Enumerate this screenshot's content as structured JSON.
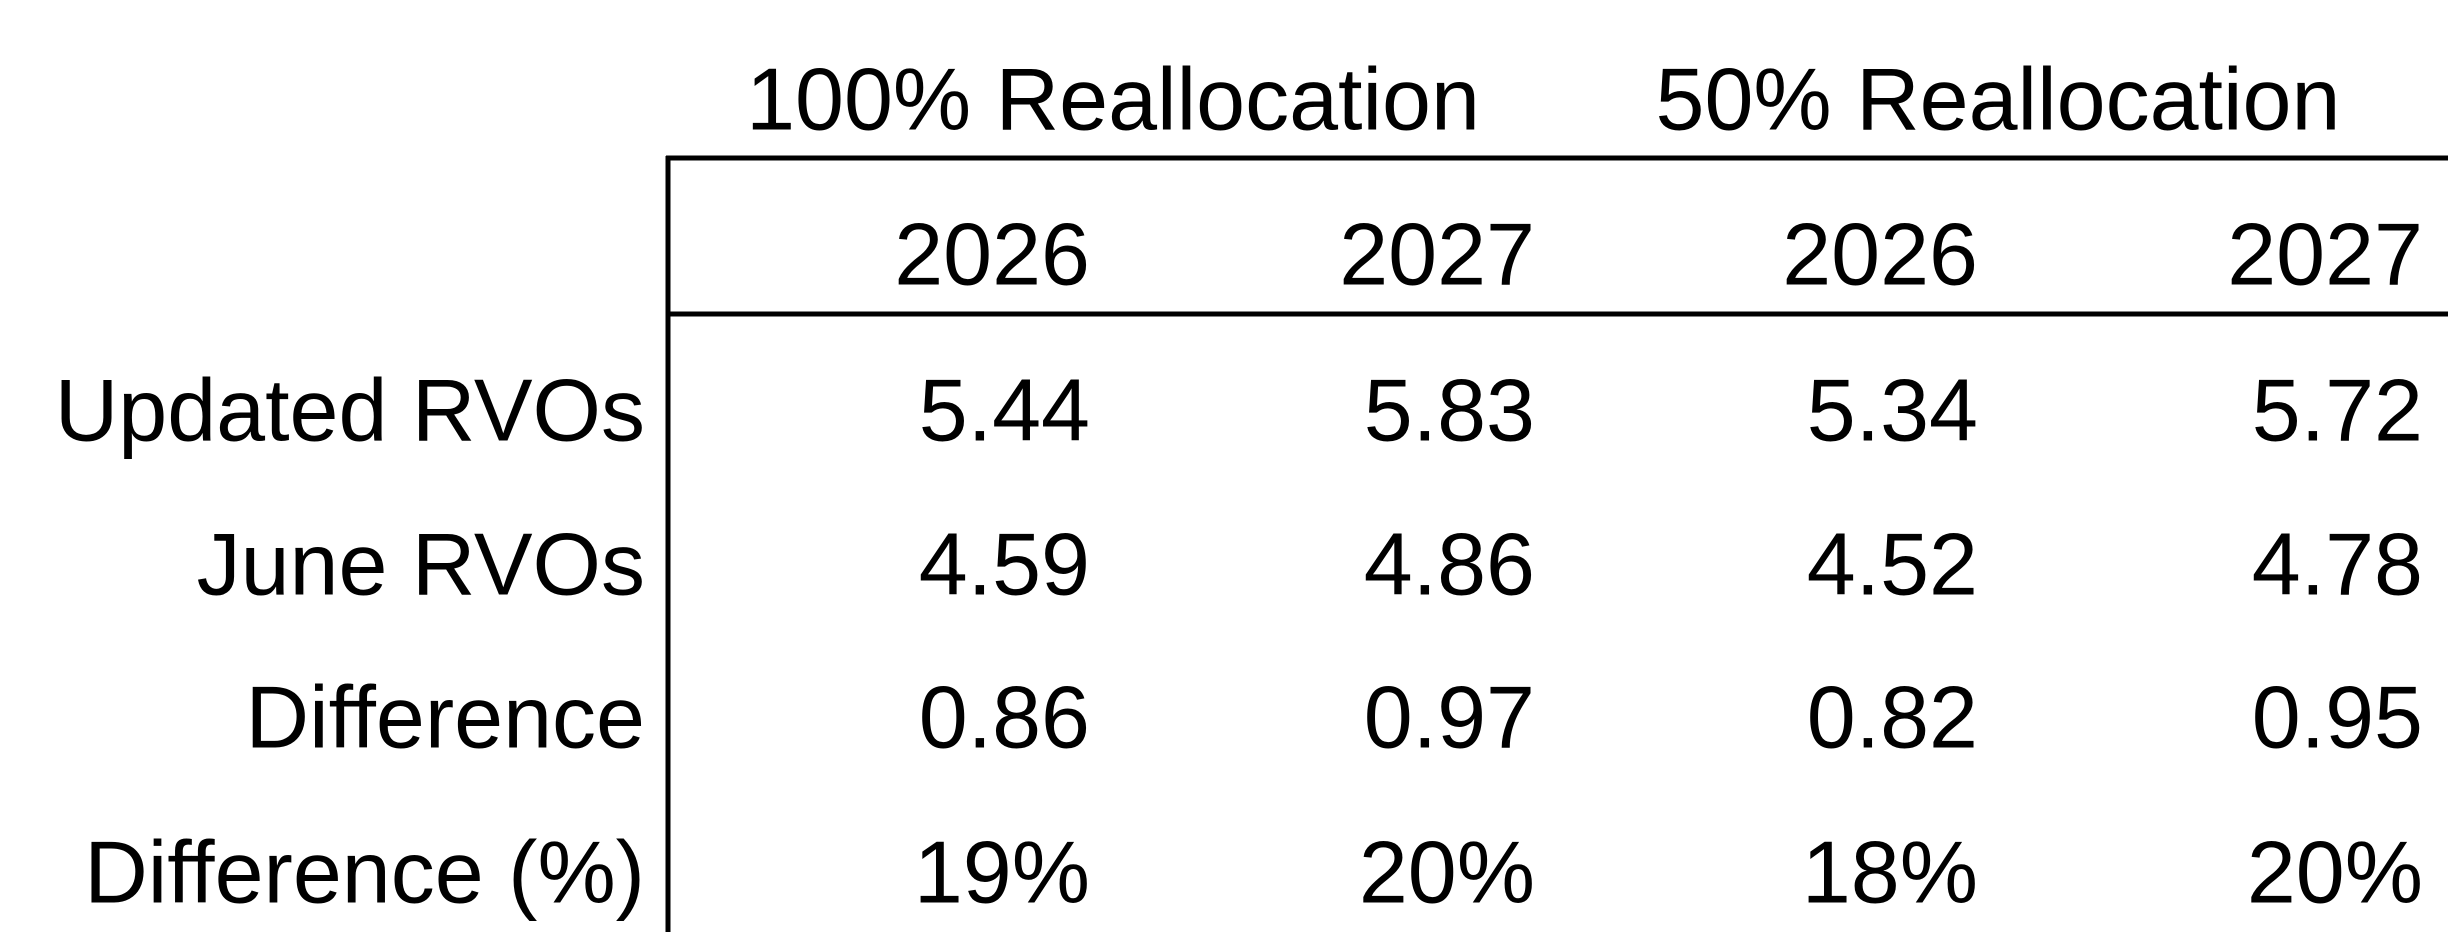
{
  "table": {
    "groups": [
      "100% Reallocation",
      "50% Reallocation"
    ],
    "columns": [
      "2026",
      "2027",
      "2026",
      "2027"
    ],
    "rows": [
      [
        "Updated RVOs",
        "5.44",
        "5.83",
        "5.34",
        "5.72"
      ],
      [
        "June RVOs",
        "4.59",
        "4.86",
        "4.52",
        "4.78"
      ],
      [
        "Difference",
        "0.86",
        "0.97",
        "0.82",
        "0.95"
      ],
      [
        "Difference (%)",
        "19%",
        "20%",
        "18%",
        "20%"
      ]
    ]
  }
}
